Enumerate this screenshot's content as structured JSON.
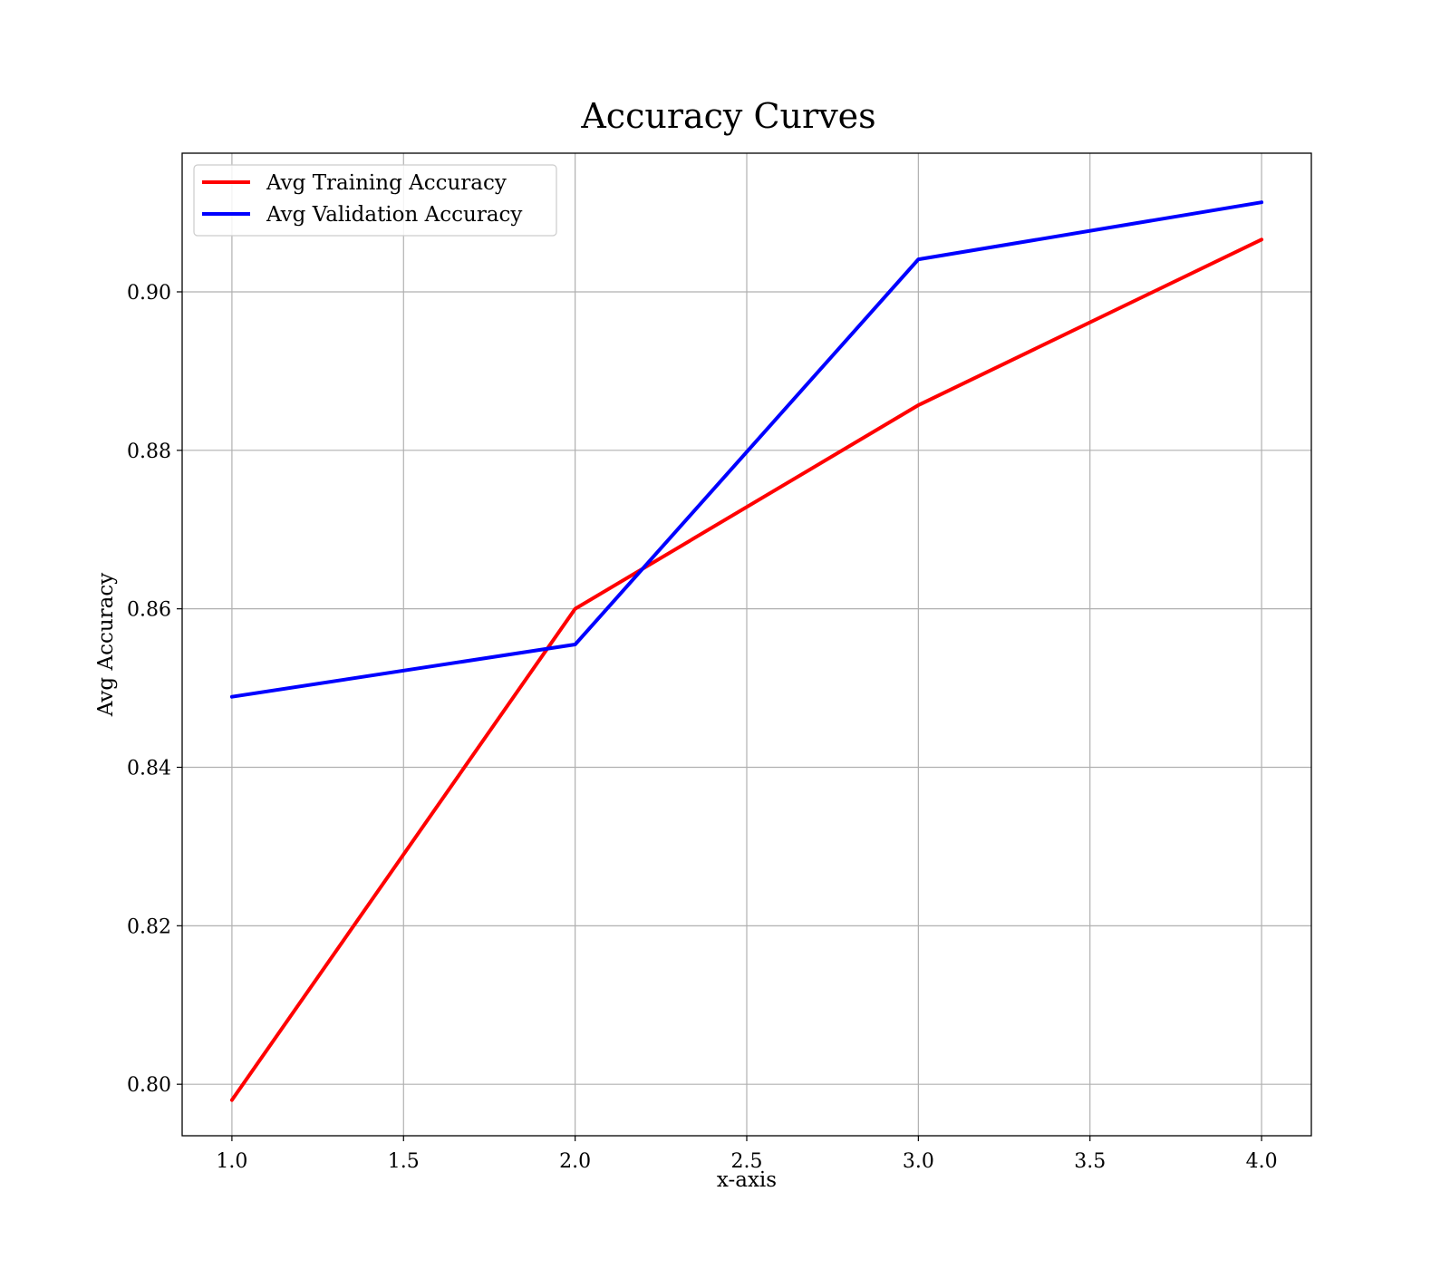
{
  "chart_data": {
    "type": "line",
    "title": "Accuracy Curves",
    "xlabel": "x-axis",
    "ylabel": "Avg Accuracy",
    "x": [
      1.0,
      2.0,
      3.0,
      4.0
    ],
    "xlim": [
      0.855,
      4.145
    ],
    "ylim": [
      0.7935,
      0.9175
    ],
    "x_ticks": [
      1.0,
      1.5,
      2.0,
      2.5,
      3.0,
      3.5,
      4.0
    ],
    "x_tick_labels": [
      "1.0",
      "1.5",
      "2.0",
      "2.5",
      "3.0",
      "3.5",
      "4.0"
    ],
    "y_ticks": [
      0.8,
      0.82,
      0.84,
      0.86,
      0.88,
      0.9
    ],
    "y_tick_labels": [
      "0.80",
      "0.82",
      "0.84",
      "0.86",
      "0.88",
      "0.90"
    ],
    "grid": true,
    "legend_position": "top-left",
    "series": [
      {
        "name": "Avg Training Accuracy",
        "color": "#ff0000",
        "values": [
          0.798,
          0.86,
          0.8857,
          0.9066
        ]
      },
      {
        "name": "Avg Validation Accuracy",
        "color": "#0000ff",
        "values": [
          0.8489,
          0.8555,
          0.9041,
          0.9113
        ]
      }
    ]
  }
}
